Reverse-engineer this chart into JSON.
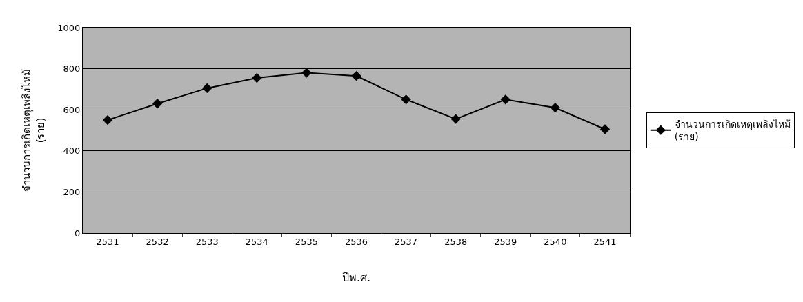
{
  "chart_data": {
    "type": "line",
    "xlabel": "ปีพ.ศ.",
    "ylabel": "จำนวนการเกิดเหตุเพลิงไหม้ (ราย)",
    "categories": [
      "2531",
      "2532",
      "2533",
      "2534",
      "2535",
      "2536",
      "2537",
      "2538",
      "2539",
      "2540",
      "2541"
    ],
    "series": [
      {
        "name": "จำนวนการเกิดเหตุเพลิงไหม้ (ราย)",
        "color": "#000000",
        "values": [
          550,
          630,
          705,
          755,
          780,
          765,
          650,
          555,
          650,
          610,
          505
        ]
      }
    ],
    "ylim": [
      0,
      1000
    ],
    "yticks": [
      0,
      200,
      400,
      600,
      800,
      1000
    ],
    "grid": "y",
    "legend": "right",
    "marker": "diamond",
    "line_style": "solid"
  }
}
